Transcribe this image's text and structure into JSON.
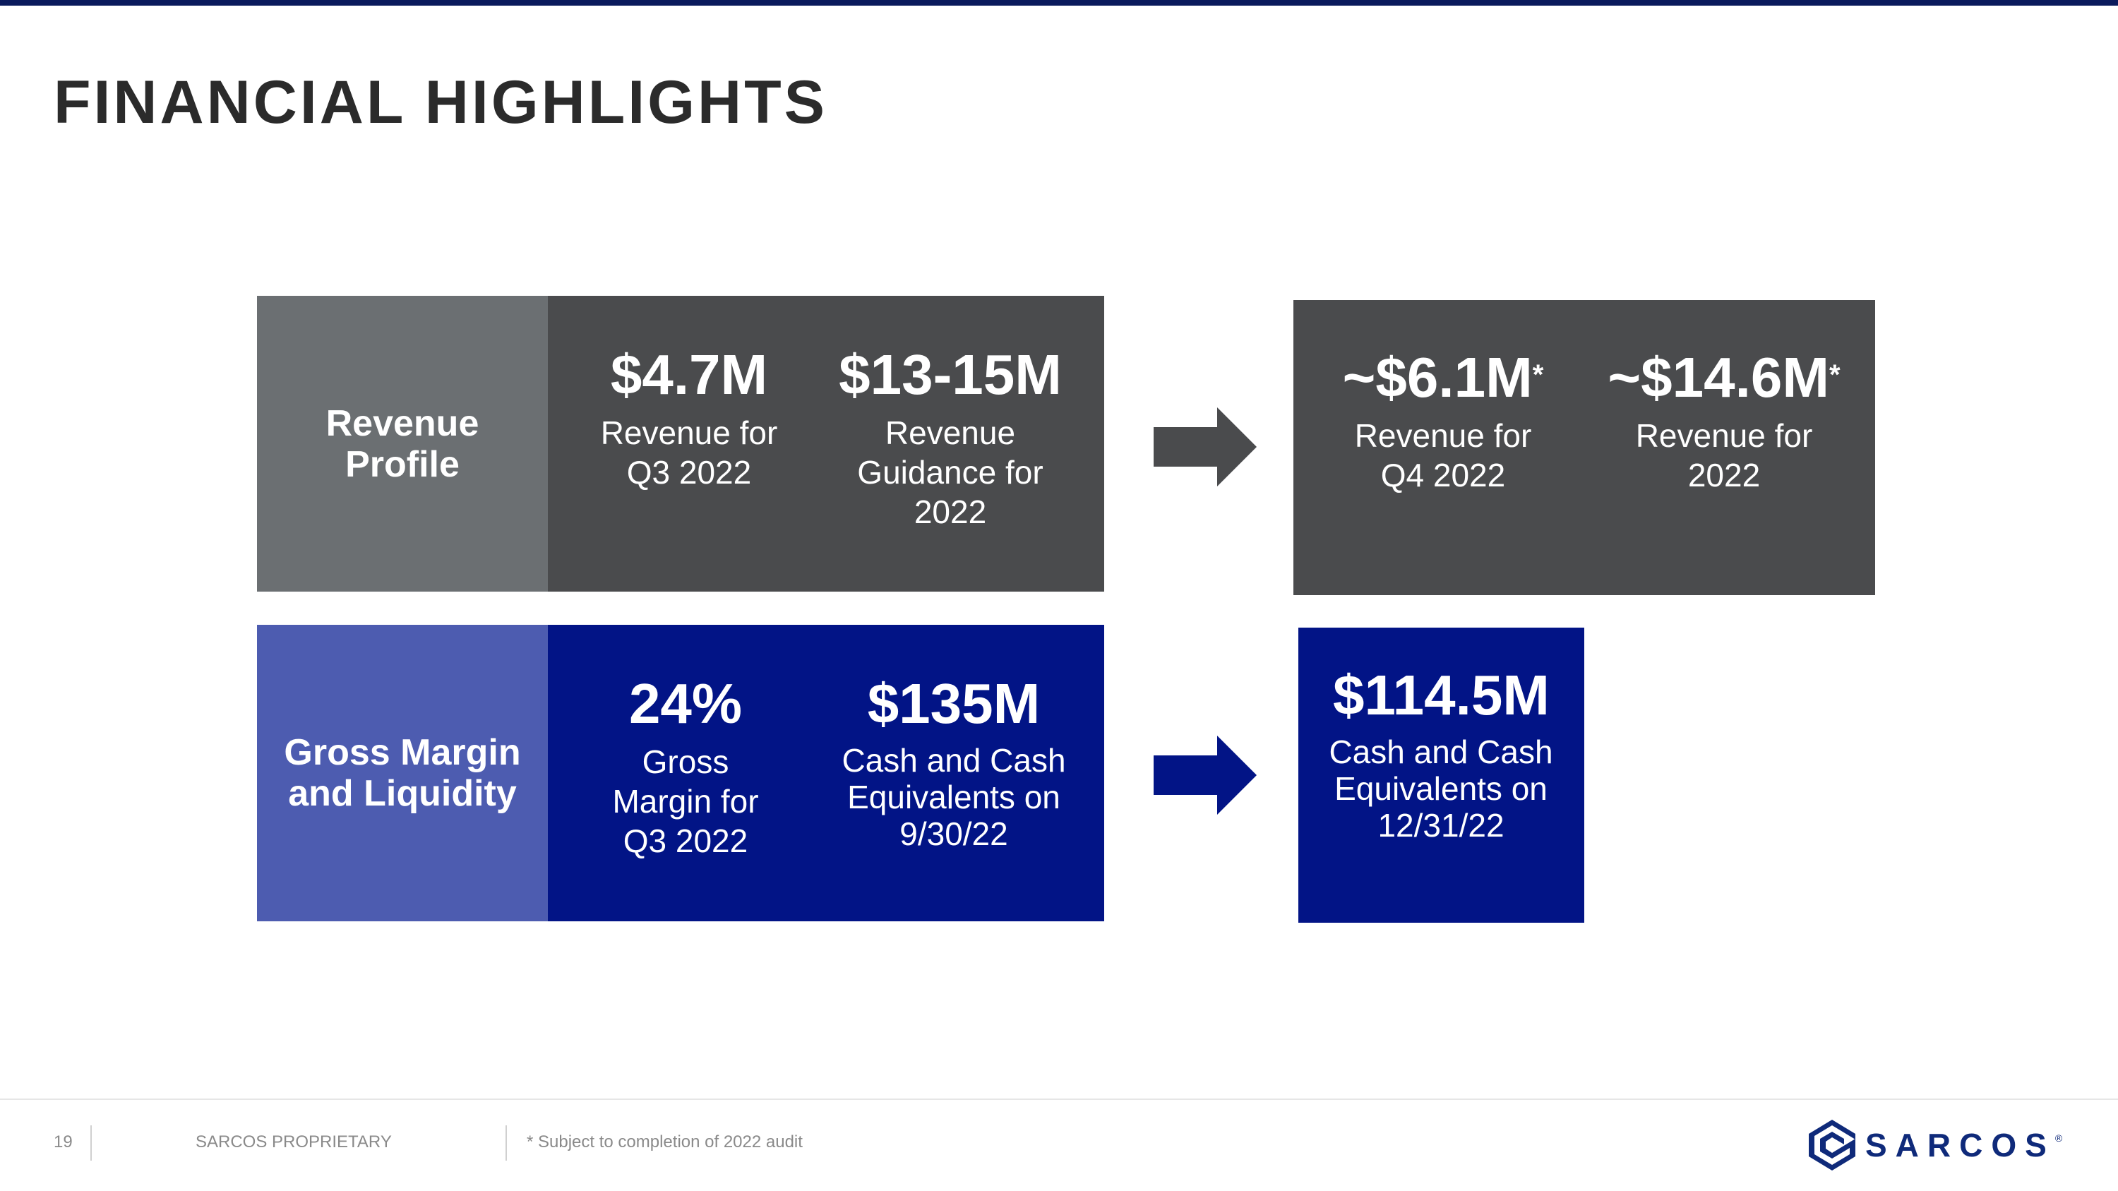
{
  "title": "FINANCIAL HIGHLIGHTS",
  "colors": {
    "top_bar": "#0a1a5c",
    "revenue_label_bg": "#6b6f72",
    "revenue_box_bg": "#4a4b4d",
    "margin_label_bg": "#4d5cb0",
    "margin_box_bg": "#021486"
  },
  "revenue_profile": {
    "label": "Revenue Profile",
    "stats": [
      {
        "value": "$4.7M",
        "desc": "Revenue for Q3 2022"
      },
      {
        "value": "$13-15M",
        "desc": "Revenue Guidance for 2022"
      }
    ],
    "outlook": [
      {
        "value": "~$6.1M",
        "mark": "*",
        "desc": "Revenue for Q4 2022"
      },
      {
        "value": "~$14.6M",
        "mark": "*",
        "desc": "Revenue for 2022"
      }
    ]
  },
  "gross_margin_liquidity": {
    "label": "Gross Margin and Liquidity",
    "stats": [
      {
        "value": "24%",
        "desc": "Gross Margin for Q3 2022"
      },
      {
        "value": "$135M",
        "desc": "Cash and Cash Equivalents on 9/30/22"
      }
    ],
    "outlook": [
      {
        "value": "$114.5M",
        "desc": "Cash and Cash Equivalents on 12/31/22"
      }
    ]
  },
  "footer": {
    "page_number": "19",
    "proprietary": "SARCOS PROPRIETARY",
    "note": "* Subject to completion of 2022 audit",
    "logo_text": "SARCOS",
    "logo_mark": "®"
  }
}
